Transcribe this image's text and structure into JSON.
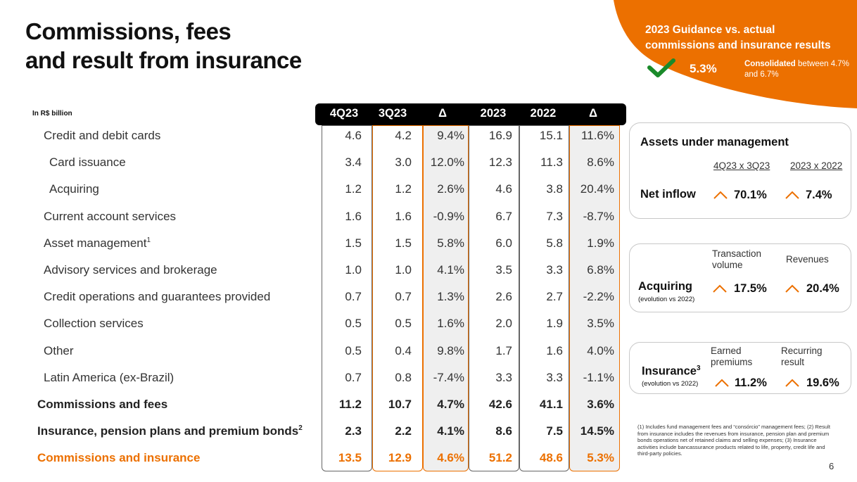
{
  "title": {
    "line1": "Commissions, fees",
    "line2": "and result from insurance"
  },
  "guidance": {
    "title_line1": "2023 Guidance  vs. actual",
    "title_line2": "commissions and insurance results",
    "value": "5.3%",
    "note_bold": "Consolidated",
    "note_rest": " between 4.7% and 6.7%",
    "colors": {
      "orange": "#ec7000",
      "check": "#1a8a2a"
    }
  },
  "table": {
    "unit": "In R$ billion",
    "headers": [
      "4Q23",
      "3Q23",
      "Δ",
      "2023",
      "2022",
      "Δ"
    ],
    "rows": [
      {
        "label": "Credit and debit cards",
        "level": 1,
        "values": [
          "4.6",
          "4.2",
          "9.4%",
          "16.9",
          "15.1",
          "11.6%"
        ]
      },
      {
        "label": "Card issuance",
        "level": 2,
        "values": [
          "3.4",
          "3.0",
          "12.0%",
          "12.3",
          "11.3",
          "8.6%"
        ]
      },
      {
        "label": "Acquiring",
        "level": 2,
        "values": [
          "1.2",
          "1.2",
          "2.6%",
          "4.6",
          "3.8",
          "20.4%"
        ]
      },
      {
        "label": "Current account services",
        "level": 1,
        "values": [
          "1.6",
          "1.6",
          "-0.9%",
          "6.7",
          "7.3",
          "-8.7%"
        ]
      },
      {
        "label": "Asset management",
        "sup": "1",
        "level": 1,
        "values": [
          "1.5",
          "1.5",
          "5.8%",
          "6.0",
          "5.8",
          "1.9%"
        ]
      },
      {
        "label": "Advisory services and brokerage",
        "level": 1,
        "values": [
          "1.0",
          "1.0",
          "4.1%",
          "3.5",
          "3.3",
          "6.8%"
        ]
      },
      {
        "label": "Credit operations and guarantees provided",
        "level": 1,
        "values": [
          "0.7",
          "0.7",
          "1.3%",
          "2.6",
          "2.7",
          "-2.2%"
        ]
      },
      {
        "label": "Collection services",
        "level": 1,
        "values": [
          "0.5",
          "0.5",
          "1.6%",
          "2.0",
          "1.9",
          "3.5%"
        ]
      },
      {
        "label": "Other",
        "level": 1,
        "values": [
          "0.5",
          "0.4",
          "9.8%",
          "1.7",
          "1.6",
          "4.0%"
        ]
      },
      {
        "label": "Latin America (ex-Brazil)",
        "level": 1,
        "values": [
          "0.7",
          "0.8",
          "-7.4%",
          "3.3",
          "3.3",
          "-1.1%"
        ]
      },
      {
        "label": "Commissions and fees",
        "level": 0,
        "values": [
          "11.2",
          "10.7",
          "4.7%",
          "42.6",
          "41.1",
          "3.6%"
        ]
      },
      {
        "label": "Insurance, pension plans and premium bonds",
        "sup": "2",
        "level": 0,
        "values": [
          "2.3",
          "2.2",
          "4.1%",
          "8.6",
          "7.5",
          "14.5%"
        ]
      },
      {
        "label": "Commissions and insurance",
        "level": 0,
        "highlight": true,
        "values": [
          "13.5",
          "12.9",
          "4.6%",
          "51.2",
          "48.6",
          "5.3%"
        ]
      }
    ]
  },
  "aum": {
    "title": "Assets under management",
    "col1": "4Q23 x 3Q23",
    "col2": "2023 x 2022",
    "row_label": "Net inflow",
    "val1": "70.1%",
    "val2": "7.4%"
  },
  "acquiring": {
    "title": "Acquiring",
    "subtitle": "(evolution vs 2022)",
    "col1": "Transaction volume",
    "col2": "Revenues",
    "val1": "17.5%",
    "val2": "20.4%"
  },
  "insurance": {
    "title": "Insurance",
    "title_sup": "3",
    "subtitle": "(evolution vs 2022)",
    "col1": "Earned premiums",
    "col2": "Recurring result",
    "val1": "11.2%",
    "val2": "19.6%"
  },
  "footnote": "(1) Includes fund management fees and “consórcio” management fees; (2) Result from insurance includes the revenues from insurance, pension plan and premium bonds operations net of retained claims and selling expenses; (3) Insurance activities include bancassurance products related to life, property, credit life and third-party policies.",
  "page_number": "6"
}
